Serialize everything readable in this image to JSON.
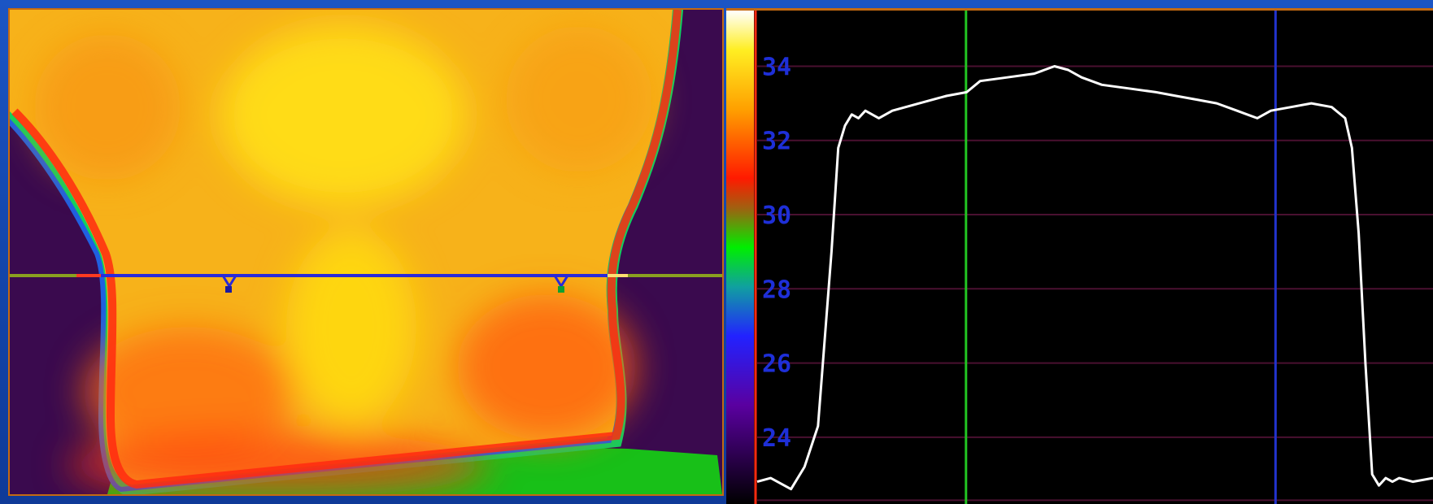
{
  "thermal_image": {
    "icons": [
      "cursor-marker-icon",
      "cursor-marker-icon"
    ]
  },
  "temperature_scale": {
    "labels": [
      "34",
      "32",
      "30",
      "28",
      "26",
      "24"
    ],
    "values": [
      34,
      32,
      30,
      28,
      26,
      24
    ],
    "range": [
      22.2,
      35.5
    ],
    "colors": [
      "#ffffff",
      "#ffee22",
      "#ffa000",
      "#ff1a00",
      "#2a9a00",
      "#00ee00",
      "#2222ff",
      "#5a00a0",
      "#000000"
    ]
  },
  "chart_data": {
    "type": "line",
    "ylim": [
      22.2,
      35.5
    ],
    "xlim": [
      0,
      100
    ],
    "yticks": [
      34,
      32,
      30,
      28,
      26,
      24
    ],
    "grid": true,
    "cursors": [
      {
        "color": "#22c422",
        "x": 30.9
      },
      {
        "color": "#2233cc",
        "x": 76.7
      }
    ],
    "series": [
      {
        "color": "#ffffff",
        "x": [
          0,
          2,
          5,
          7,
          9,
          11,
          12,
          13,
          14,
          15,
          16,
          18,
          20,
          24,
          28,
          31,
          33,
          37,
          41,
          44,
          46,
          48,
          51,
          55,
          59,
          62,
          65,
          68,
          71,
          74,
          76,
          79,
          82,
          85,
          87,
          88,
          89,
          90,
          91,
          92,
          93,
          94,
          95,
          97,
          100
        ],
        "y": [
          22.8,
          22.9,
          22.6,
          23.2,
          24.3,
          29.0,
          31.8,
          32.4,
          32.7,
          32.6,
          32.8,
          32.6,
          32.8,
          33.0,
          33.2,
          33.3,
          33.6,
          33.7,
          33.8,
          34.0,
          33.9,
          33.7,
          33.5,
          33.4,
          33.3,
          33.2,
          33.1,
          33.0,
          32.8,
          32.6,
          32.8,
          32.9,
          33.0,
          32.9,
          32.6,
          31.8,
          29.5,
          26.0,
          23.0,
          22.7,
          22.9,
          22.8,
          22.9,
          22.8,
          22.9
        ]
      }
    ]
  }
}
